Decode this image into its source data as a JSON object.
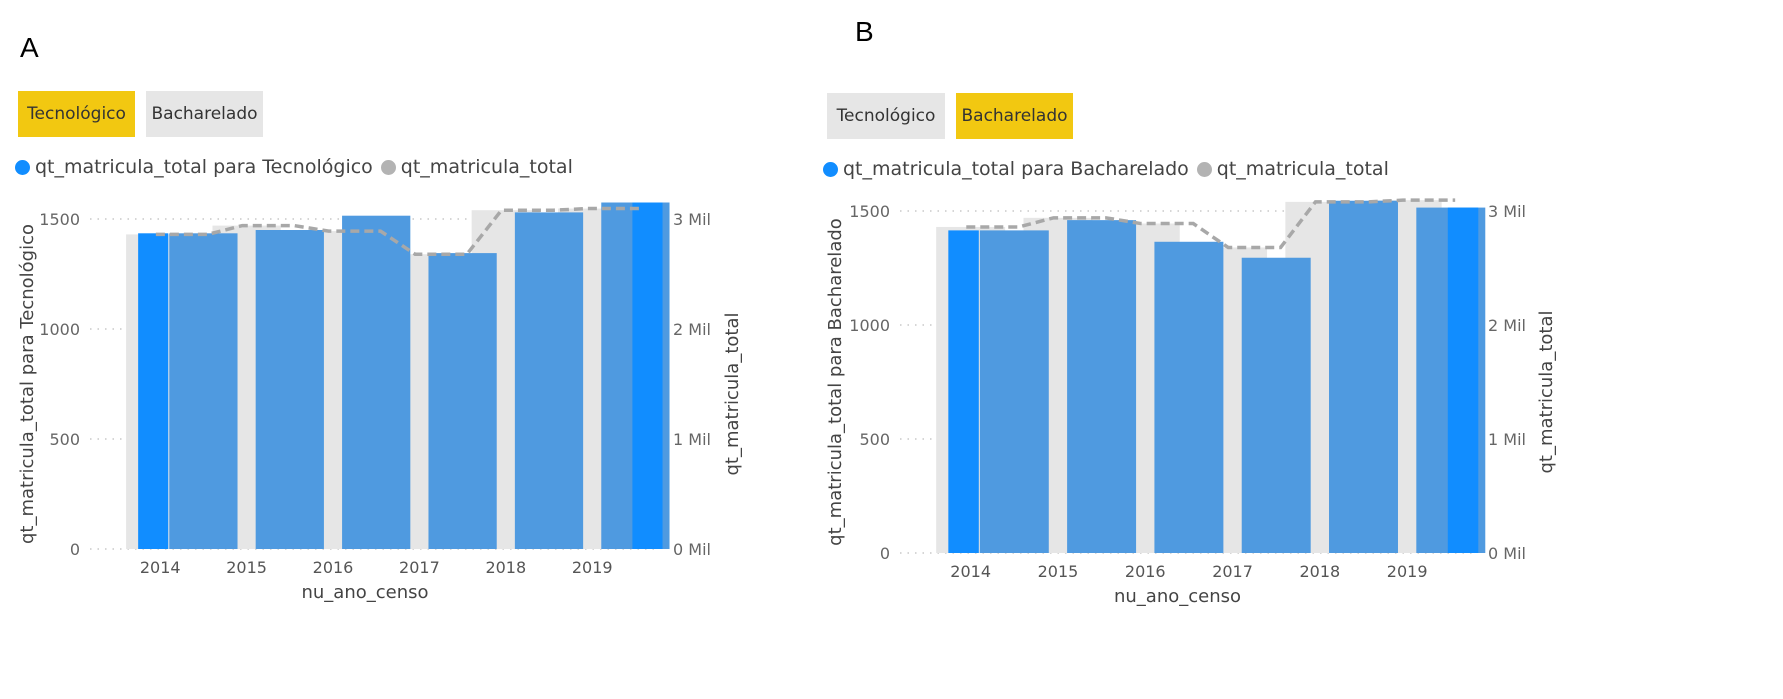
{
  "panels": [
    {
      "letter": "A",
      "slicer": [
        {
          "label": "Tecnológico",
          "selected": true
        },
        {
          "label": "Bacharelado",
          "selected": false
        }
      ],
      "legend": [
        {
          "label": "qt_matricula_total para Tecnológico",
          "color": "#118dff"
        },
        {
          "label": "qt_matricula_total",
          "color": "#b3b3b3"
        }
      ]
    },
    {
      "letter": "B",
      "slicer": [
        {
          "label": "Tecnológico",
          "selected": false
        },
        {
          "label": "Bacharelado",
          "selected": true
        }
      ],
      "legend": [
        {
          "label": "qt_matricula_total para Bacharelado",
          "color": "#118dff"
        },
        {
          "label": "qt_matricula_total",
          "color": "#b3b3b3"
        }
      ]
    }
  ],
  "chart_data": [
    {
      "type": "bar",
      "categories": [
        "2014",
        "2015",
        "2016",
        "2017",
        "2018",
        "2019"
      ],
      "series": [
        {
          "name": "qt_matricula_total para Tecnológico",
          "values": [
            1435,
            1450,
            1515,
            1345,
            1530,
            1575
          ],
          "axis": "left",
          "color": "#118dff"
        },
        {
          "name": "qt_matricula_total",
          "values": [
            2860,
            2940,
            2890,
            2680,
            3080,
            3095
          ],
          "axis": "right",
          "color": "#e6e6e6",
          "stepped_line": true
        }
      ],
      "xlabel": "nu_ano_censo",
      "ylabel": "qt_matricula_total para Tecnológico",
      "y2label": "qt_matricula_total",
      "ylim": [
        0,
        1500
      ],
      "yticks": [
        "0",
        "500",
        "1000",
        "1500"
      ],
      "y2lim": [
        0,
        3000
      ],
      "y2ticks": [
        "0 Mil",
        "1 Mil",
        "2 Mil",
        "3 Mil"
      ],
      "grid": true,
      "legend_position": "top-left"
    },
    {
      "type": "bar",
      "categories": [
        "2014",
        "2015",
        "2016",
        "2017",
        "2018",
        "2019"
      ],
      "series": [
        {
          "name": "qt_matricula_total para Bacharelado",
          "values": [
            1415,
            1460,
            1365,
            1295,
            1545,
            1515
          ],
          "axis": "left",
          "color": "#118dff"
        },
        {
          "name": "qt_matricula_total",
          "values": [
            2860,
            2940,
            2890,
            2680,
            3080,
            3095
          ],
          "axis": "right",
          "color": "#e6e6e6",
          "stepped_line": true
        }
      ],
      "xlabel": "nu_ano_censo",
      "ylabel": "qt_matricula_total para Bacharelado",
      "y2label": "qt_matricula_total",
      "ylim": [
        0,
        1500
      ],
      "yticks": [
        "0",
        "500",
        "1000",
        "1500"
      ],
      "y2lim": [
        0,
        3000
      ],
      "y2ticks": [
        "0 Mil",
        "1 Mil",
        "2 Mil",
        "3 Mil"
      ],
      "grid": true,
      "legend_position": "top-left"
    }
  ]
}
